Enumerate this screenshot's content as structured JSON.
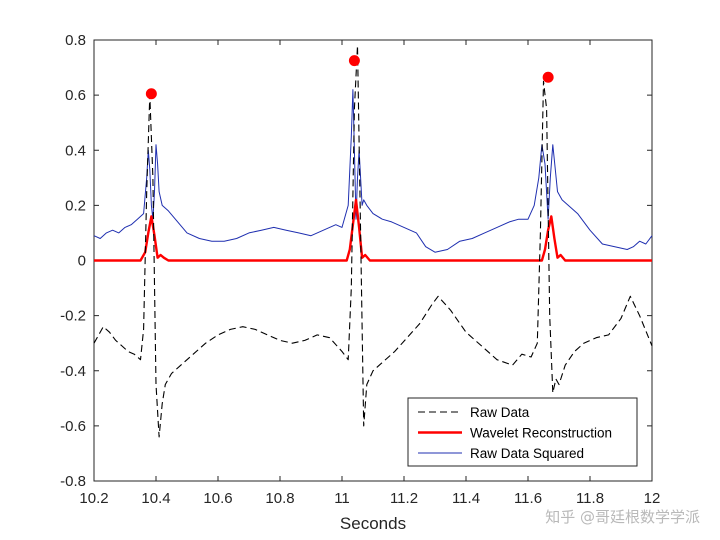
{
  "chart_data": {
    "type": "line",
    "xlabel": "Seconds",
    "ylabel": "",
    "xlim": [
      10.2,
      12
    ],
    "ylim": [
      -0.8,
      0.8
    ],
    "xticks": [
      10.2,
      10.4,
      10.6,
      10.8,
      11,
      11.2,
      11.4,
      11.6,
      11.8,
      12
    ],
    "xtick_labels": [
      "10.2",
      "10.4",
      "10.6",
      "10.8",
      "11",
      "11.2",
      "11.4",
      "11.6",
      "11.8",
      "12"
    ],
    "yticks": [
      0.8,
      0.6,
      0.4,
      0.2,
      0,
      -0.2,
      -0.4,
      -0.6,
      -0.8
    ],
    "ytick_labels": [
      "0.8",
      "0.6",
      "0.4",
      "0.2",
      "0",
      "-0.2",
      "-0.4",
      "-0.6",
      "-0.8"
    ],
    "grid": false,
    "legend_position": "bottom-right",
    "series": [
      {
        "name": "Raw Data",
        "color": "#000000",
        "style": "dashed",
        "x": [
          10.2,
          10.215,
          10.23,
          10.25,
          10.27,
          10.29,
          10.31,
          10.33,
          10.35,
          10.36,
          10.37,
          10.38,
          10.39,
          10.4,
          10.41,
          10.42,
          10.43,
          10.45,
          10.48,
          10.52,
          10.56,
          10.6,
          10.64,
          10.68,
          10.72,
          10.76,
          10.8,
          10.84,
          10.88,
          10.92,
          10.96,
          11.0,
          11.02,
          11.03,
          11.04,
          11.05,
          11.06,
          11.07,
          11.08,
          11.1,
          11.13,
          11.17,
          11.21,
          11.25,
          11.29,
          11.31,
          11.35,
          11.4,
          11.45,
          11.5,
          11.55,
          11.58,
          11.61,
          11.63,
          11.64,
          11.65,
          11.66,
          11.67,
          11.68,
          11.69,
          11.7,
          11.72,
          11.75,
          11.78,
          11.82,
          11.86,
          11.9,
          11.93,
          11.96,
          12.0
        ],
        "y": [
          -0.3,
          -0.27,
          -0.24,
          -0.26,
          -0.29,
          -0.31,
          -0.33,
          -0.34,
          -0.36,
          -0.25,
          0.25,
          0.6,
          0.3,
          -0.45,
          -0.64,
          -0.52,
          -0.45,
          -0.41,
          -0.38,
          -0.34,
          -0.3,
          -0.27,
          -0.25,
          -0.24,
          -0.25,
          -0.27,
          -0.29,
          -0.3,
          -0.29,
          -0.27,
          -0.28,
          -0.33,
          -0.36,
          -0.1,
          0.55,
          0.78,
          0.1,
          -0.6,
          -0.45,
          -0.4,
          -0.37,
          -0.33,
          -0.28,
          -0.23,
          -0.16,
          -0.13,
          -0.18,
          -0.26,
          -0.31,
          -0.36,
          -0.38,
          -0.34,
          -0.35,
          -0.3,
          0.1,
          0.65,
          0.55,
          -0.2,
          -0.48,
          -0.43,
          -0.45,
          -0.38,
          -0.33,
          -0.3,
          -0.28,
          -0.27,
          -0.21,
          -0.13,
          -0.2,
          -0.31
        ]
      },
      {
        "name": "Wavelet Reconstruction",
        "color": "#ff0000",
        "style": "solid",
        "x": [
          10.2,
          10.35,
          10.365,
          10.375,
          10.385,
          10.395,
          10.405,
          10.415,
          10.425,
          10.44,
          10.98,
          11.015,
          11.025,
          11.035,
          11.045,
          11.055,
          11.065,
          11.075,
          11.09,
          11.61,
          11.645,
          11.655,
          11.665,
          11.675,
          11.685,
          11.695,
          11.705,
          11.72,
          12.0
        ],
        "y": [
          0,
          0,
          0.03,
          0.1,
          0.16,
          0.09,
          0.01,
          0.02,
          0.01,
          0,
          0,
          0,
          0.04,
          0.13,
          0.22,
          0.12,
          0.01,
          0.02,
          0,
          0,
          0,
          0.04,
          0.11,
          0.16,
          0.08,
          0.01,
          0.02,
          0,
          0
        ]
      },
      {
        "name": "Raw Data Squared",
        "color": "#1f2fb0",
        "style": "solid",
        "x": [
          10.2,
          10.22,
          10.24,
          10.26,
          10.28,
          10.3,
          10.32,
          10.34,
          10.36,
          10.37,
          10.375,
          10.38,
          10.385,
          10.39,
          10.395,
          10.4,
          10.405,
          10.41,
          10.42,
          10.44,
          10.47,
          10.5,
          10.54,
          10.58,
          10.62,
          10.66,
          10.7,
          10.74,
          10.78,
          10.82,
          10.86,
          10.9,
          10.94,
          10.98,
          11.0,
          11.02,
          11.03,
          11.035,
          11.04,
          11.045,
          11.05,
          11.055,
          11.06,
          11.065,
          11.07,
          11.08,
          11.1,
          11.13,
          11.16,
          11.2,
          11.24,
          11.27,
          11.3,
          11.34,
          11.38,
          11.42,
          11.46,
          11.5,
          11.54,
          11.57,
          11.6,
          11.62,
          11.635,
          11.645,
          11.655,
          11.665,
          11.672,
          11.68,
          11.688,
          11.695,
          11.71,
          11.73,
          11.76,
          11.8,
          11.84,
          11.88,
          11.92,
          11.94,
          11.96,
          11.98,
          12.0
        ],
        "y": [
          0.09,
          0.08,
          0.1,
          0.11,
          0.1,
          0.12,
          0.13,
          0.15,
          0.17,
          0.3,
          0.4,
          0.33,
          0.2,
          0.15,
          0.25,
          0.42,
          0.35,
          0.25,
          0.2,
          0.18,
          0.14,
          0.1,
          0.08,
          0.07,
          0.07,
          0.08,
          0.1,
          0.11,
          0.12,
          0.11,
          0.1,
          0.09,
          0.11,
          0.13,
          0.12,
          0.2,
          0.45,
          0.62,
          0.4,
          0.15,
          0.3,
          0.4,
          0.3,
          0.2,
          0.22,
          0.2,
          0.17,
          0.15,
          0.14,
          0.12,
          0.1,
          0.05,
          0.03,
          0.04,
          0.07,
          0.08,
          0.1,
          0.12,
          0.14,
          0.15,
          0.15,
          0.2,
          0.3,
          0.42,
          0.35,
          0.15,
          0.3,
          0.42,
          0.33,
          0.25,
          0.22,
          0.2,
          0.17,
          0.11,
          0.06,
          0.05,
          0.04,
          0.05,
          0.07,
          0.06,
          0.09
        ]
      }
    ],
    "peaks": {
      "color": "#ff0000",
      "x": [
        10.385,
        11.04,
        11.665
      ],
      "y": [
        0.605,
        0.725,
        0.665
      ]
    }
  },
  "watermark": "知乎 @哥廷根数学学派"
}
